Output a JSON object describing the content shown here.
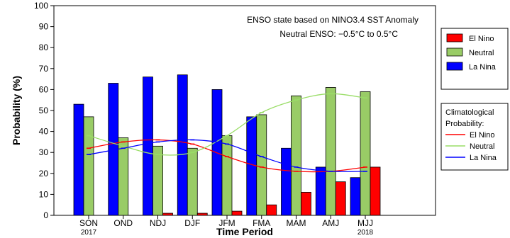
{
  "chart_data": {
    "type": "bar",
    "xlabel": "Time Period",
    "ylabel": "Probability (%)",
    "ylim": [
      0,
      100
    ],
    "yticks": [
      0,
      10,
      20,
      30,
      40,
      50,
      60,
      70,
      80,
      90,
      100
    ],
    "grid": false,
    "annotations": [
      "ENSO state based on NINO3.4 SST Anomaly",
      "Neutral ENSO: −0.5°C to 0.5°C"
    ],
    "categories": [
      "SON",
      "OND",
      "NDJ",
      "DJF",
      "JFM",
      "FMA",
      "MAM",
      "AMJ",
      "MJJ"
    ],
    "year_labels": [
      {
        "category": "SON",
        "text": "2017"
      },
      {
        "category": "MJJ",
        "text": "2018"
      }
    ],
    "series": [
      {
        "name": "La Nina",
        "color": "#0000ff",
        "values": [
          53,
          63,
          66,
          67,
          60,
          47,
          32,
          23,
          18
        ]
      },
      {
        "name": "Neutral",
        "color": "#99cc66",
        "values": [
          47,
          37,
          33,
          32,
          38,
          48,
          57,
          61,
          59
        ]
      },
      {
        "name": "El Nino",
        "color": "#ff0000",
        "values": [
          0,
          0,
          1,
          1,
          2,
          5,
          11,
          16,
          23
        ]
      }
    ],
    "legend": {
      "position": "right",
      "items": [
        "El Nino",
        "Neutral",
        "La Nina"
      ]
    },
    "climatology": {
      "title_lines": [
        "Climatological",
        "Probability:"
      ],
      "legend_position": "right",
      "series": [
        {
          "name": "El Nino",
          "color": "#ff0000",
          "values": [
            32,
            35,
            36,
            34,
            28,
            23,
            21,
            21,
            23
          ]
        },
        {
          "name": "Neutral",
          "color": "#99dd66",
          "values": [
            38,
            33,
            29,
            30,
            38,
            49,
            55,
            58,
            56
          ]
        },
        {
          "name": "La Nina",
          "color": "#0000ff",
          "values": [
            29,
            32,
            35,
            36,
            34,
            28,
            23,
            21,
            21
          ]
        }
      ]
    }
  }
}
